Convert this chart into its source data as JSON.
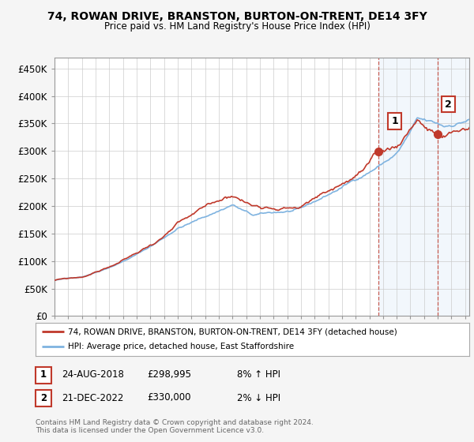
{
  "title": "74, ROWAN DRIVE, BRANSTON, BURTON-ON-TRENT, DE14 3FY",
  "subtitle": "Price paid vs. HM Land Registry's House Price Index (HPI)",
  "ylabel_ticks": [
    "£0",
    "£50K",
    "£100K",
    "£150K",
    "£200K",
    "£250K",
    "£300K",
    "£350K",
    "£400K",
    "£450K"
  ],
  "ytick_vals": [
    0,
    50000,
    100000,
    150000,
    200000,
    250000,
    300000,
    350000,
    400000,
    450000
  ],
  "ylim": [
    0,
    470000
  ],
  "xlim_start": 1995.0,
  "xlim_end": 2025.3,
  "hpi_color": "#7fb3e0",
  "price_color": "#c0392b",
  "shade_color": "#ddeeff",
  "sale1_date": "24-AUG-2018",
  "sale1_price": "£298,995",
  "sale1_hpi": "8% ↑ HPI",
  "sale2_date": "21-DEC-2022",
  "sale2_price": "£330,000",
  "sale2_hpi": "2% ↓ HPI",
  "sale1_x": 2018.65,
  "sale1_y": 298995,
  "sale2_x": 2022.97,
  "sale2_y": 330000,
  "legend_label1": "74, ROWAN DRIVE, BRANSTON, BURTON-ON-TRENT, DE14 3FY (detached house)",
  "legend_label2": "HPI: Average price, detached house, East Staffordshire",
  "footnote": "Contains HM Land Registry data © Crown copyright and database right 2024.\nThis data is licensed under the Open Government Licence v3.0.",
  "background_color": "#f5f5f5",
  "plot_bg_color": "#ffffff",
  "grid_color": "#cccccc"
}
